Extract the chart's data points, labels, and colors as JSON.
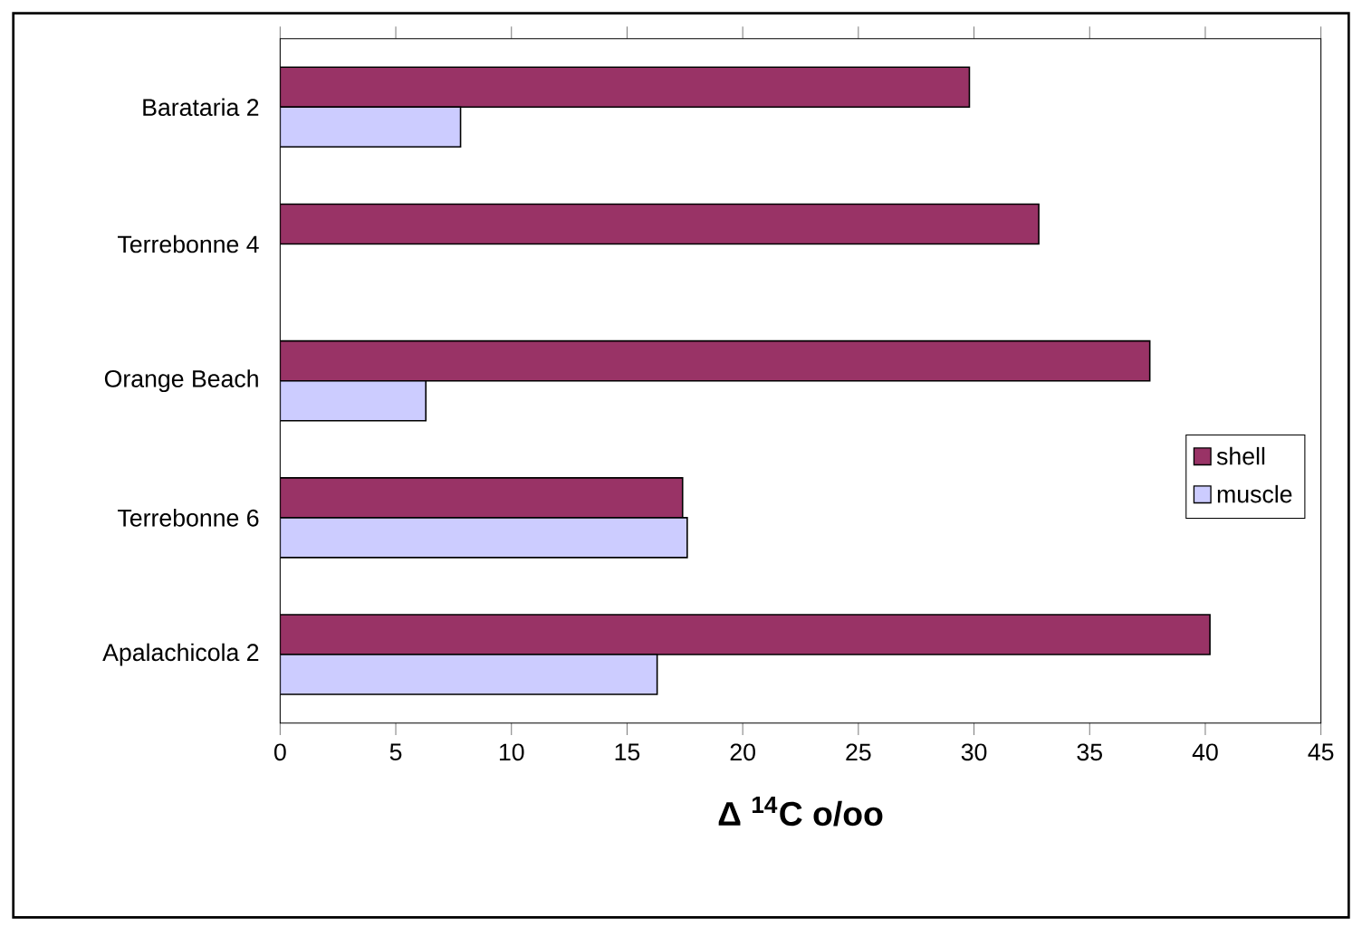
{
  "chart_data": {
    "type": "bar",
    "orientation": "horizontal",
    "xlabel": "Δ $^{14}$C o/oo",
    "categories": [
      "Barataria 2",
      "Terrebonne 4",
      "Orange Beach",
      "Terrebonne 6",
      "Apalachicola 2"
    ],
    "series": [
      {
        "name": "shell",
        "color": "#993366",
        "values": [
          29.8,
          32.8,
          37.6,
          17.4,
          40.2
        ]
      },
      {
        "name": "muscle",
        "color": "#ccccff",
        "values": [
          7.8,
          null,
          6.3,
          17.6,
          16.3
        ]
      }
    ],
    "xlim": [
      0,
      45
    ],
    "xticks": [
      0,
      5,
      10,
      15,
      20,
      25,
      30,
      35,
      40,
      45
    ],
    "grid": false,
    "legend": "right"
  }
}
